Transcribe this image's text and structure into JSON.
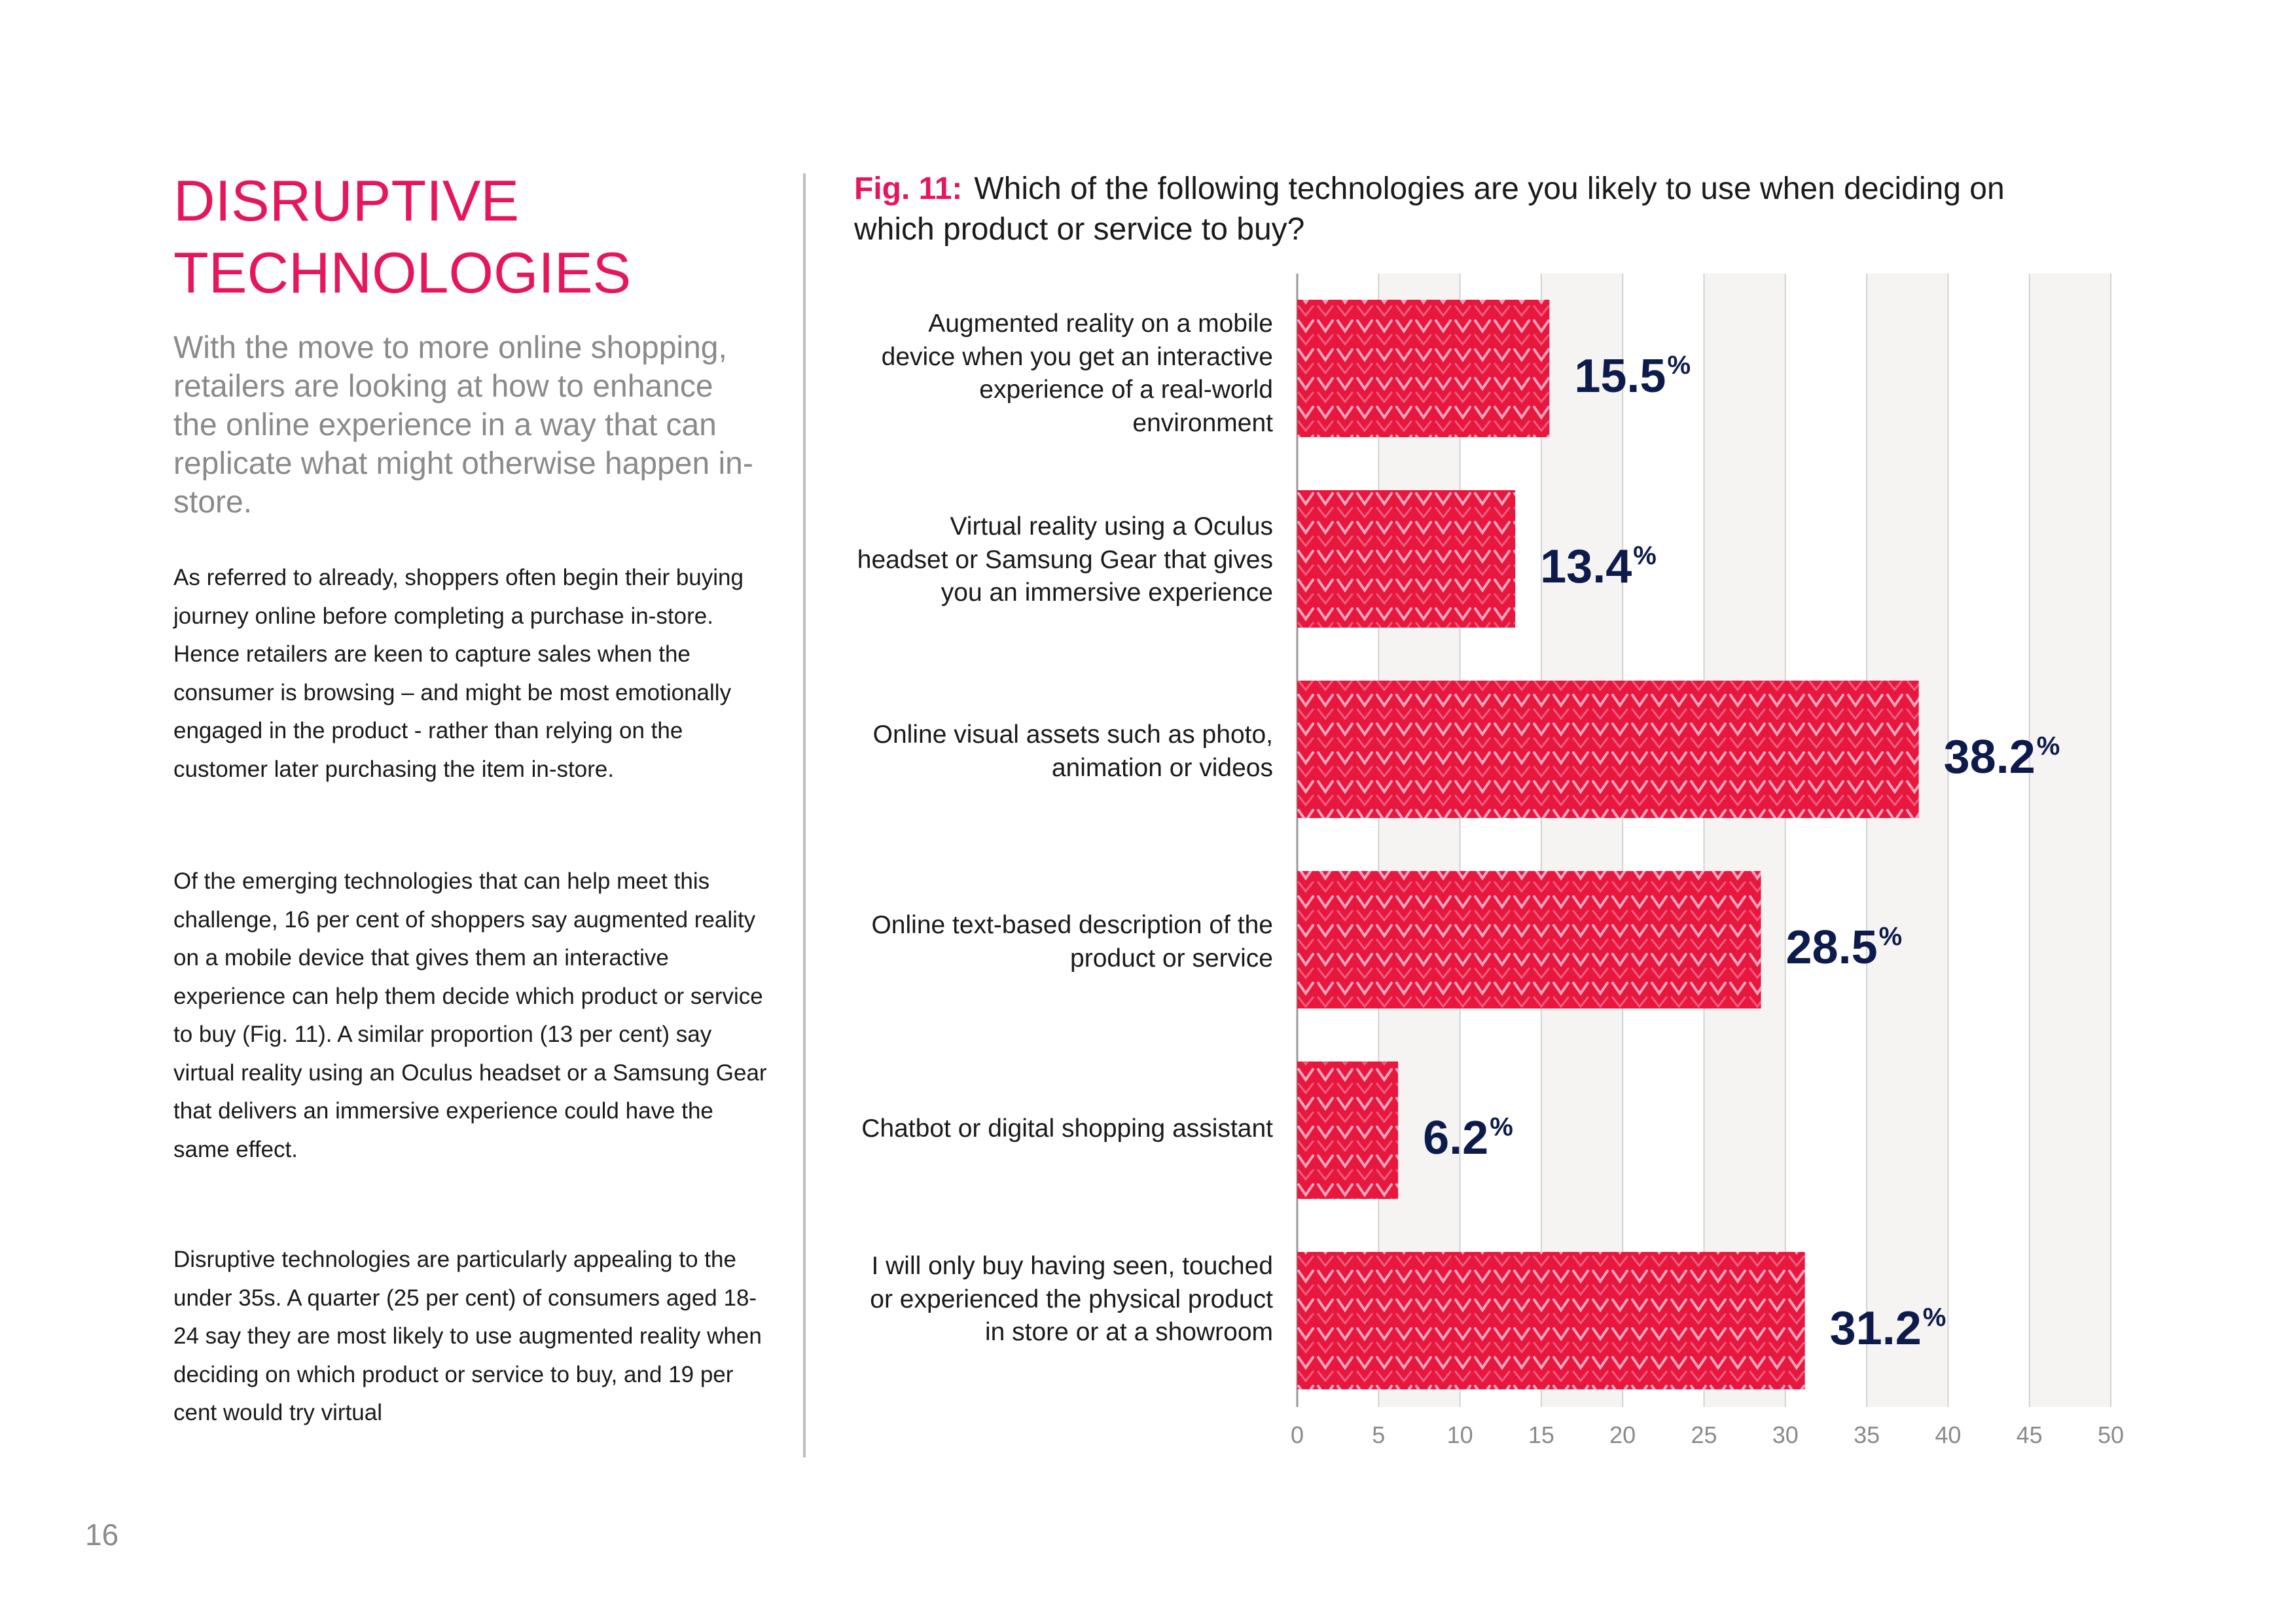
{
  "page": {
    "title_line1": "DISRUPTIVE",
    "title_line2": "TECHNOLOGIES",
    "intro": "With the move to more online shopping, retailers are looking at how to enhance the online experience in a way that can replicate what might otherwise happen in-store.",
    "paragraphs": [
      "As referred to already, shoppers often begin their buying journey online before completing a purchase in-store. Hence retailers are keen to capture sales when the consumer is browsing – and might be most emotionally engaged in the product - rather than relying on the customer later purchasing the item in-store.",
      "Of the emerging technologies that can help meet this challenge, 16 per cent of shoppers say augmented reality on a mobile device that gives them an interactive experience can help them decide which product or service to buy (Fig. 11). A similar proportion (13 per cent) say virtual reality using an Oculus headset or a Samsung Gear that delivers an immersive experience could have the same effect.",
      "Disruptive technologies are particularly appealing to the under 35s.  A quarter (25 per cent) of consumers aged 18-24 say they are most likely to use augmented reality when deciding on which product or service to buy, and 19 per cent would try virtual"
    ],
    "page_number": "16"
  },
  "colors": {
    "accent": "#e5175a",
    "bar_red": "#e8173d",
    "bar_pattern": "#f4a6c0",
    "value_text": "#0d1b4c",
    "grid_band": "#f5f4f2"
  },
  "chart_data": {
    "type": "bar",
    "orientation": "horizontal",
    "fig_label": "Fig. 11:",
    "title": "Which of the following technologies are you likely to use when deciding on which product or service to buy?",
    "categories": [
      "Augmented reality on a mobile device when you get an interactive experience of a real-world environment",
      "Virtual reality using a Oculus headset or Samsung Gear that gives you an immersive experience",
      "Online visual assets such as photo, animation or videos",
      "Online text-based description of the product or service",
      "Chatbot or digital shopping assistant",
      "I will only buy having seen, touched or experienced the physical product in store or at a showroom"
    ],
    "values": [
      15.5,
      13.4,
      38.2,
      28.5,
      6.2,
      31.2
    ],
    "value_labels": [
      "15.5",
      "13.4",
      "38.2",
      "28.5",
      "6.2",
      "31.2"
    ],
    "value_suffix": "%",
    "xlim": [
      0,
      50
    ],
    "x_ticks": [
      "0",
      "5",
      "10",
      "15",
      "20",
      "25",
      "30",
      "35",
      "40",
      "45",
      "50"
    ],
    "grid": true
  }
}
